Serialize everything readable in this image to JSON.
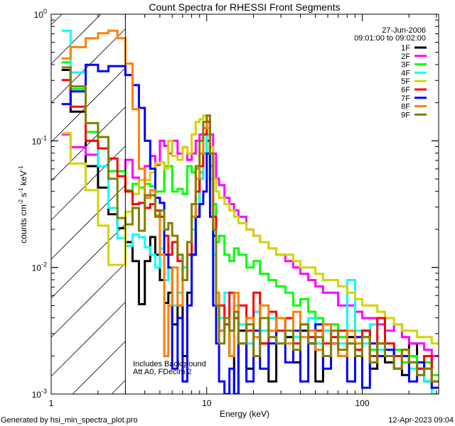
{
  "chart_data": {
    "type": "line",
    "step": true,
    "title": "Count Spectra for RHESSI Front Segments",
    "xlabel": "Energy (keV)",
    "ylabel": {
      "base": "counts cm",
      "exp1": "-2",
      "mid1": " s",
      "exp2": "-1",
      "mid2": " keV",
      "exp3": "-1"
    },
    "xscale": "log",
    "yscale": "log",
    "xlim": [
      1,
      310
    ],
    "ylim": [
      0.001,
      1
    ],
    "x_ticks": [
      {
        "value": 1,
        "label": "1"
      },
      {
        "value": 10,
        "label": "10"
      },
      {
        "value": 100,
        "label": "100"
      }
    ],
    "y_ticks": [
      {
        "value": 0.001,
        "base": "10",
        "exp": "-3"
      },
      {
        "value": 0.01,
        "base": "10",
        "exp": "-2"
      },
      {
        "value": 0.1,
        "base": "10",
        "exp": "-1"
      },
      {
        "value": 1,
        "base": "10",
        "exp": "0"
      }
    ],
    "hatched_region_keV": [
      1,
      3
    ],
    "legend": {
      "placement": "top-right",
      "date": "27-Jun-2006",
      "time_range": "09:01:00 to 09:02:00"
    },
    "annotations": [
      "Includes Background",
      "Att A0, FDecim 2"
    ],
    "energy_bin_edges_keV": [
      1.167,
      1.333,
      1.667,
      2.0,
      2.333,
      2.667,
      3.0,
      3.333,
      3.667,
      4.0,
      4.333,
      4.667,
      5.0,
      5.333,
      5.667,
      6.0,
      6.5,
      7.0,
      7.5,
      8.0,
      8.5,
      9.0,
      9.5,
      10,
      10.5,
      11,
      11.5,
      12,
      13,
      14,
      15,
      16,
      18,
      20,
      22,
      25,
      28,
      32,
      36,
      40,
      45,
      50,
      56,
      63,
      70,
      80,
      90,
      100,
      112,
      125,
      140,
      160,
      180,
      200,
      225,
      250,
      280,
      310
    ],
    "series": [
      {
        "name": "1F",
        "color": "#000000",
        "log10_values": [
          -0.44,
          -0.77,
          -1.2,
          -1.37,
          -1.58,
          -1.69,
          -1.8,
          -1.95,
          -2.29,
          -1.95,
          -1.76,
          -1.9,
          -2.1,
          -2.28,
          -2.2,
          -2.45,
          -2.3,
          -2.7,
          -2.2,
          -1.9,
          -1.6,
          -1.3,
          -1.1,
          -1.0,
          -1.3,
          -1.75,
          -2.3,
          -2.5,
          -2.4,
          -2.7,
          null,
          -2.5,
          -2.8,
          -2.35,
          -2.6,
          -2.9,
          -2.4,
          -2.55,
          -2.75,
          -2.5,
          -2.6,
          -2.9,
          -2.45,
          -2.6,
          -2.7,
          -2.55,
          -2.65,
          -2.5,
          -2.8,
          -2.6,
          -2.75,
          -2.7,
          -2.85,
          -2.6,
          -2.8,
          -2.9,
          -2.7
        ]
      },
      {
        "name": "2F",
        "color": "#ff00ff",
        "log10_values": [
          -0.95,
          -1.05,
          -1.11,
          -1.2,
          -1.24,
          -1.24,
          -1.15,
          -1.29,
          -1.31,
          -1.2,
          -1.12,
          -1.19,
          -1.0,
          -1.04,
          -1.1,
          -1.0,
          -1.1,
          -1.05,
          -1.15,
          -1.1,
          -1.0,
          -0.95,
          -0.9,
          -0.85,
          -0.95,
          -1.1,
          -1.3,
          -1.35,
          -1.45,
          -1.5,
          -1.55,
          -1.6,
          -1.7,
          -1.75,
          -1.8,
          -1.85,
          -1.9,
          -1.95,
          -2.0,
          -2.05,
          -2.1,
          -2.15,
          -2.2,
          -2.2,
          -2.3,
          -2.3,
          -2.35,
          -2.4,
          -2.4,
          -2.45,
          -2.5,
          -2.45,
          -2.55,
          -2.6,
          -2.6,
          -2.65,
          -2.7
        ]
      },
      {
        "name": "3F",
        "color": "#00ff00",
        "log10_values": [
          -0.38,
          -0.59,
          -0.93,
          -1.2,
          -1.24,
          -1.24,
          -1.39,
          -1.34,
          -1.37,
          -1.34,
          -1.36,
          -1.4,
          -1.4,
          -1.2,
          -1.2,
          -1.4,
          -1.38,
          -1.42,
          -1.2,
          -1.25,
          -1.22,
          -1.25,
          -1.1,
          -0.9,
          -1.2,
          -1.5,
          -1.8,
          -1.75,
          -1.9,
          -1.95,
          -1.85,
          -1.9,
          -2.0,
          -1.95,
          -2.05,
          -2.1,
          -2.15,
          -2.2,
          -2.3,
          -2.25,
          -2.35,
          -2.4,
          -2.5,
          -2.45,
          -2.55,
          -2.5,
          -2.6,
          -2.55,
          -2.65,
          -2.6,
          -2.7,
          -2.65,
          -2.75,
          -2.7,
          -2.8,
          -2.75,
          -2.85
        ]
      },
      {
        "name": "4F",
        "color": "#00ffff",
        "log10_values": [
          -0.13,
          -0.46,
          -1.0,
          -1.2,
          -1.53,
          -1.77,
          -1.83,
          -1.74,
          -1.76,
          -1.84,
          -1.9,
          -2.0,
          -1.85,
          -2.1,
          -2.0,
          -2.3,
          -2.2,
          -2.0,
          -1.9,
          -1.7,
          -1.5,
          -1.3,
          -1.1,
          -0.95,
          -1.3,
          -1.9,
          -2.3,
          -2.4,
          -2.2,
          -2.5,
          -2.3,
          -2.45,
          -2.6,
          -2.35,
          -2.5,
          -2.4,
          -2.6,
          -2.5,
          -2.55,
          -2.45,
          -2.4,
          -2.6,
          -2.5,
          -2.55,
          -2.6,
          -2.1,
          -2.5,
          -2.6,
          -2.45,
          -2.65,
          -2.6,
          -2.7,
          -2.65,
          -2.8,
          -2.75,
          -2.9,
          -3.0
        ]
      },
      {
        "name": "5F",
        "color": "#d4d400",
        "log10_values": [
          -0.94,
          -1.18,
          -1.39,
          -1.67,
          -1.98,
          -1.98,
          -1.56,
          -1.42,
          -1.31,
          -1.31,
          -1.25,
          -1.18,
          -1.17,
          -1.22,
          -1.0,
          -1.12,
          -1.15,
          -1.05,
          -1.1,
          -0.95,
          -0.85,
          -0.83,
          -0.8,
          -0.9,
          -1.05,
          -1.3,
          -1.4,
          -1.45,
          -1.5,
          -1.55,
          -1.6,
          -1.65,
          -1.7,
          -1.75,
          -1.8,
          -1.85,
          -1.9,
          -1.9,
          -1.95,
          -2.0,
          -2.0,
          -2.05,
          -2.1,
          -2.1,
          -2.15,
          -2.2,
          -2.25,
          -2.3,
          -2.3,
          -2.35,
          -2.4,
          -2.45,
          -2.5,
          -2.5,
          -2.55,
          -2.55,
          -2.6
        ]
      },
      {
        "name": "6F",
        "color": "#ff0000",
        "log10_values": [
          -0.52,
          -0.73,
          -1.0,
          -1.06,
          -1.14,
          -1.28,
          -1.4,
          -1.5,
          -1.49,
          -1.53,
          -1.5,
          -1.55,
          -1.6,
          -1.75,
          -1.9,
          -1.8,
          -1.95,
          -2.1,
          -1.9,
          -1.6,
          -1.4,
          -1.2,
          -0.95,
          -0.85,
          -1.1,
          -1.6,
          -2.2,
          -2.3,
          -2.45,
          -2.2,
          -2.4,
          -2.3,
          -2.5,
          -2.2,
          -2.6,
          -2.35,
          -2.5,
          -2.4,
          -2.6,
          -2.45,
          -2.55,
          -2.5,
          -2.6,
          -2.55,
          -2.5,
          -2.6,
          -2.65,
          -2.5,
          -2.7,
          -2.4,
          -2.6,
          -2.7,
          -2.65,
          -2.75,
          -2.8,
          -2.7,
          -2.9
        ]
      },
      {
        "name": "7F",
        "color": "#0000ff",
        "log10_values": [
          -0.71,
          -0.61,
          -0.4,
          -0.45,
          -0.41,
          -0.41,
          -0.48,
          -0.56,
          -0.74,
          -1.0,
          -1.22,
          -1.45,
          -1.49,
          -1.9,
          -2.0,
          -2.8,
          -2.4,
          -2.9,
          -2.3,
          -1.9,
          -1.6,
          -1.5,
          -1.4,
          -1.1,
          -1.6,
          -2.3,
          -2.6,
          -2.9,
          null,
          -2.8,
          null,
          -2.6,
          -2.9,
          -2.5,
          -2.8,
          -2.6,
          -2.4,
          -2.75,
          -2.5,
          -2.9,
          -2.6,
          -2.45,
          -2.8,
          -2.6,
          -2.7,
          -2.9,
          -2.55,
          -2.95,
          -2.6,
          -2.7,
          -2.65,
          -2.8,
          -2.7,
          -2.9,
          -2.75,
          -2.8,
          -2.95
        ]
      },
      {
        "name": "8F",
        "color": "#ff8000",
        "log10_values": [
          -0.35,
          -0.26,
          -0.19,
          -0.15,
          -0.13,
          -0.19,
          -0.39,
          -0.75,
          -1.22,
          -1.45,
          -1.39,
          -1.59,
          -1.9,
          -2.7,
          -2.3,
          -2.0,
          -2.3,
          -2.1,
          -1.8,
          -1.6,
          -1.3,
          -1.1,
          -0.9,
          -0.8,
          -1.1,
          -1.7,
          -2.2,
          -2.5,
          -2.4,
          -2.7,
          -2.2,
          -2.6,
          -2.4,
          -2.55,
          -2.3,
          -2.5,
          -2.4,
          -2.6,
          -2.35,
          -2.55,
          -2.5,
          -2.65,
          -2.45,
          -2.6,
          -2.7,
          -2.5,
          -2.6,
          -2.55,
          -2.75,
          -2.6,
          -2.7,
          -2.8,
          -2.65,
          -2.75,
          -2.85,
          -2.8,
          -2.9
        ]
      },
      {
        "name": "9F",
        "color": "#808000",
        "log10_values": [
          -0.42,
          -0.57,
          -0.86,
          -0.97,
          -1.3,
          -1.61,
          -1.66,
          -1.53,
          -1.71,
          -1.43,
          -1.43,
          -1.6,
          -1.55,
          -1.7,
          -1.65,
          -1.75,
          -1.9,
          -2.1,
          -1.8,
          -1.5,
          -1.2,
          -1.0,
          -0.85,
          -0.8,
          -1.1,
          -1.7,
          -2.3,
          -2.6,
          -2.4,
          -2.5,
          -2.35,
          -2.6,
          -2.45,
          -2.7,
          -2.4,
          -2.55,
          -2.6,
          -2.5,
          -2.65,
          -2.45,
          -2.6,
          -2.55,
          -2.7,
          -2.5,
          -2.65,
          -2.6,
          -2.7,
          -2.55,
          -2.75,
          -2.6,
          -2.7,
          -2.8,
          -2.65,
          -2.75,
          -2.85,
          -2.8,
          -2.9
        ]
      }
    ]
  },
  "footer": {
    "generated_by": "Generated by hsi_min_spectra_plot.pro",
    "timestamp": "12-Apr-2023 09:04"
  }
}
